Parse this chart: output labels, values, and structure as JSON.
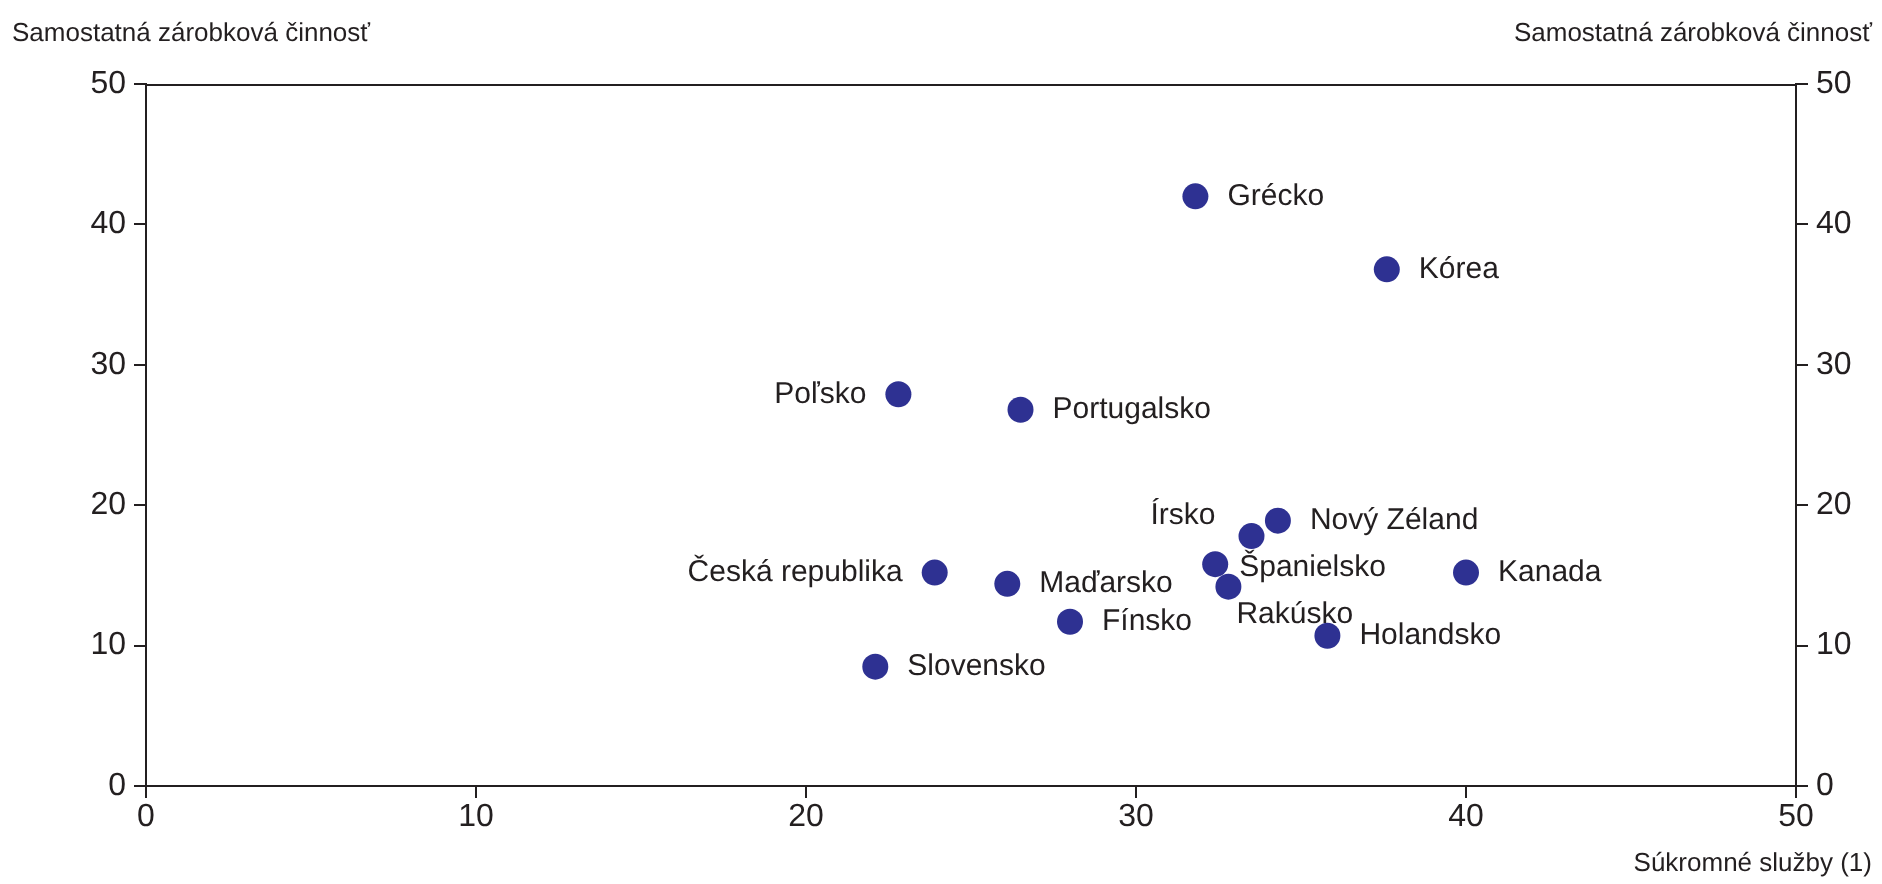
{
  "chart_data": {
    "type": "scatter",
    "ylabel": "Samostatná zárobková činnosť",
    "y2label": "Samostatná zárobková činnosť",
    "xlabel": "Súkromné služby (1)",
    "x": [
      31.8,
      37.6,
      22.8,
      26.5,
      34.3,
      33.5,
      32.4,
      32.8,
      40.0,
      23.9,
      26.1,
      28.0,
      35.8,
      22.1
    ],
    "series": [
      {
        "color": "#2e3192",
        "values": [
          42.0,
          36.8,
          27.9,
          26.8,
          18.9,
          17.8,
          15.8,
          14.2,
          15.2,
          15.2,
          14.4,
          11.7,
          10.7,
          8.5
        ]
      }
    ],
    "annotations": [
      {
        "text": "Grécko",
        "x": 31.8,
        "y": 42.0
      },
      {
        "text": "Kórea",
        "x": 37.6,
        "y": 36.8
      },
      {
        "text": "Poľsko",
        "x": 22.8,
        "y": 27.9
      },
      {
        "text": "Portugalsko",
        "x": 26.5,
        "y": 26.8
      },
      {
        "text": "Nový Zéland",
        "x": 34.3,
        "y": 18.9
      },
      {
        "text": "Írsko",
        "x": 33.5,
        "y": 17.8
      },
      {
        "text": "Španielsko",
        "x": 32.4,
        "y": 15.8
      },
      {
        "text": "Rakúsko",
        "x": 32.8,
        "y": 14.2
      },
      {
        "text": "Kanada",
        "x": 40.0,
        "y": 15.2
      },
      {
        "text": "Česká republika",
        "x": 23.9,
        "y": 15.2
      },
      {
        "text": "Maďarsko",
        "x": 26.1,
        "y": 14.4
      },
      {
        "text": "Fínsko",
        "x": 28.0,
        "y": 11.7
      },
      {
        "text": "Holandsko",
        "x": 35.8,
        "y": 10.7
      },
      {
        "text": "Slovensko",
        "x": 22.1,
        "y": 8.5
      }
    ],
    "xlim": [
      0,
      50
    ],
    "xticks": [
      0,
      10,
      20,
      30,
      40,
      50
    ],
    "ylim": [
      0,
      50
    ],
    "yticks": [
      0,
      10,
      20,
      30,
      40,
      50
    ],
    "y2lim": [
      0,
      50
    ],
    "y2ticks": [
      0,
      10,
      20,
      30,
      40,
      50
    ],
    "marker": "circle",
    "legend": false,
    "grid": false
  }
}
